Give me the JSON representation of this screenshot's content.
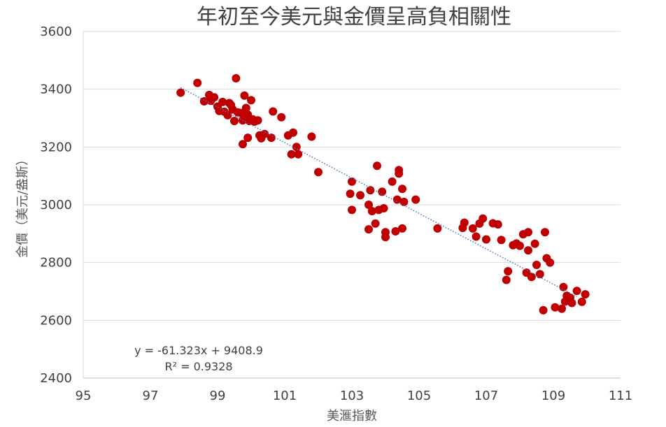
{
  "chart_data": {
    "type": "scatter",
    "title": "年初至今美元與金價呈高負相關性",
    "xlabel": "美滙指數",
    "ylabel": "金價（美元/盎斯）",
    "xlim": [
      95,
      111
    ],
    "ylim": [
      2400,
      3600
    ],
    "x_ticks": [
      "95",
      "97",
      "99",
      "101",
      "103",
      "105",
      "107",
      "109",
      "111"
    ],
    "y_ticks": [
      "2400",
      "2600",
      "2800",
      "3000",
      "3200",
      "3400",
      "3600"
    ],
    "grid": "horizontal",
    "marker_color": "#C00000",
    "trendline": {
      "slope": -61.323,
      "intercept": 9408.9,
      "color": "#4472C4",
      "style": "dotted",
      "x_range": [
        97.9,
        109.7
      ]
    },
    "equation": "y = -61.323x + 9408.9",
    "r_squared": "R² = 0.9328",
    "points": [
      [
        97.9,
        3388
      ],
      [
        98.4,
        3422
      ],
      [
        98.6,
        3358
      ],
      [
        98.75,
        3380
      ],
      [
        98.8,
        3360
      ],
      [
        98.9,
        3372
      ],
      [
        99.0,
        3340
      ],
      [
        99.05,
        3325
      ],
      [
        99.15,
        3356
      ],
      [
        99.2,
        3322
      ],
      [
        99.3,
        3310
      ],
      [
        99.35,
        3352
      ],
      [
        99.4,
        3345
      ],
      [
        99.45,
        3330
      ],
      [
        99.55,
        3438
      ],
      [
        99.5,
        3290
      ],
      [
        99.6,
        3320
      ],
      [
        99.7,
        3318
      ],
      [
        99.75,
        3292
      ],
      [
        99.8,
        3378
      ],
      [
        99.75,
        3210
      ],
      [
        99.85,
        3335
      ],
      [
        99.9,
        3312
      ],
      [
        99.95,
        3290
      ],
      [
        100.0,
        3362
      ],
      [
        99.9,
        3232
      ],
      [
        100.05,
        3296
      ],
      [
        100.1,
        3288
      ],
      [
        100.2,
        3292
      ],
      [
        100.25,
        3240
      ],
      [
        100.3,
        3230
      ],
      [
        100.4,
        3245
      ],
      [
        100.6,
        3232
      ],
      [
        100.65,
        3323
      ],
      [
        100.9,
        3303
      ],
      [
        101.1,
        3240
      ],
      [
        101.25,
        3250
      ],
      [
        101.2,
        3175
      ],
      [
        101.35,
        3200
      ],
      [
        101.4,
        3175
      ],
      [
        101.8,
        3236
      ],
      [
        102.0,
        3113
      ],
      [
        103.0,
        3080
      ],
      [
        102.95,
        3038
      ],
      [
        103.0,
        2982
      ],
      [
        103.25,
        3033
      ],
      [
        103.5,
        3000
      ],
      [
        103.6,
        2978
      ],
      [
        103.55,
        3050
      ],
      [
        103.5,
        2915
      ],
      [
        103.7,
        2935
      ],
      [
        103.75,
        3135
      ],
      [
        103.8,
        2982
      ],
      [
        103.9,
        3045
      ],
      [
        103.95,
        2988
      ],
      [
        104.0,
        2905
      ],
      [
        104.0,
        2888
      ],
      [
        104.2,
        3080
      ],
      [
        104.3,
        2908
      ],
      [
        104.35,
        3018
      ],
      [
        104.4,
        3120
      ],
      [
        104.4,
        3108
      ],
      [
        104.5,
        3055
      ],
      [
        104.55,
        3010
      ],
      [
        104.5,
        2918
      ],
      [
        104.9,
        3018
      ],
      [
        105.55,
        2918
      ],
      [
        106.3,
        2920
      ],
      [
        106.35,
        2938
      ],
      [
        106.6,
        2918
      ],
      [
        106.7,
        2890
      ],
      [
        106.8,
        2935
      ],
      [
        106.9,
        2952
      ],
      [
        107.0,
        2880
      ],
      [
        107.2,
        2936
      ],
      [
        107.35,
        2932
      ],
      [
        107.45,
        2878
      ],
      [
        107.6,
        2740
      ],
      [
        107.65,
        2770
      ],
      [
        107.8,
        2860
      ],
      [
        107.9,
        2866
      ],
      [
        108.0,
        2858
      ],
      [
        108.1,
        2898
      ],
      [
        108.2,
        2765
      ],
      [
        108.25,
        2905
      ],
      [
        108.25,
        2842
      ],
      [
        108.35,
        2750
      ],
      [
        108.45,
        2865
      ],
      [
        108.5,
        2792
      ],
      [
        108.6,
        2760
      ],
      [
        108.7,
        2635
      ],
      [
        108.75,
        2905
      ],
      [
        108.8,
        2815
      ],
      [
        108.9,
        2800
      ],
      [
        109.05,
        2645
      ],
      [
        109.25,
        2640
      ],
      [
        109.3,
        2715
      ],
      [
        109.35,
        2665
      ],
      [
        109.4,
        2685
      ],
      [
        109.5,
        2678
      ],
      [
        109.55,
        2660
      ],
      [
        109.7,
        2702
      ],
      [
        109.85,
        2664
      ],
      [
        109.95,
        2690
      ]
    ]
  }
}
